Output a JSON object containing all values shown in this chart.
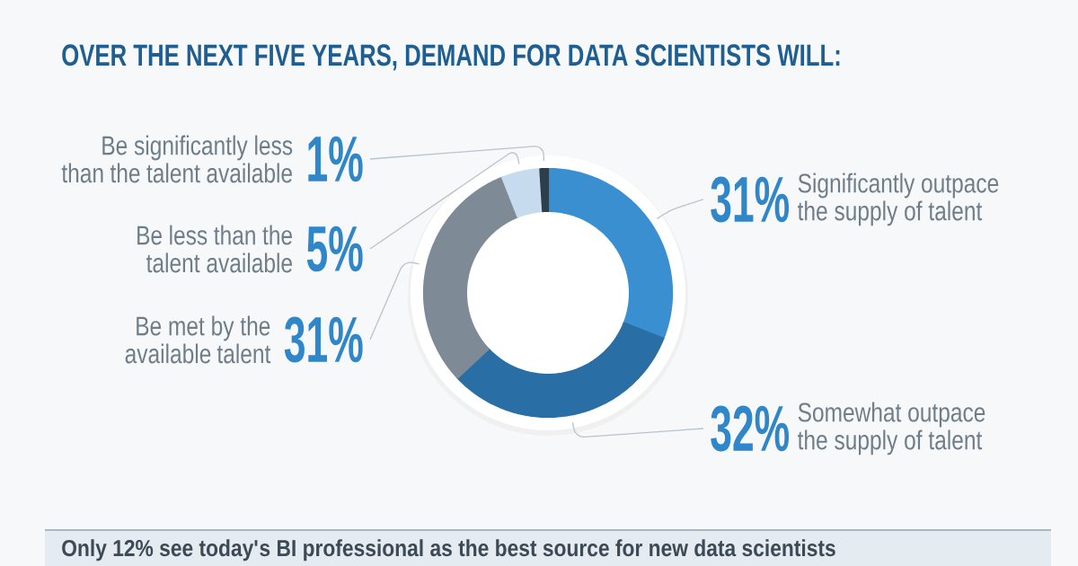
{
  "chart_data": {
    "type": "donut",
    "title": "OVER THE NEXT FIVE YEARS, DEMAND FOR DATA SCIENTISTS WILL:",
    "categories": [
      "Significantly outpace the supply of talent",
      "Somewhat outpace the supply of talent",
      "Be met by the available talent",
      "Be less than the talent available",
      "Be significantly less than the talent available"
    ],
    "values": [
      31,
      32,
      31,
      5,
      1
    ],
    "colors": [
      "#3a8fd1",
      "#2a6ea6",
      "#7e8b97",
      "#c6dcee",
      "#2d3e4c"
    ],
    "value_labels": [
      "31%",
      "32%",
      "31%",
      "5%",
      "1%"
    ],
    "annotations": [
      "Only 12% see today's BI professional as the best source for new data scientists"
    ]
  }
}
